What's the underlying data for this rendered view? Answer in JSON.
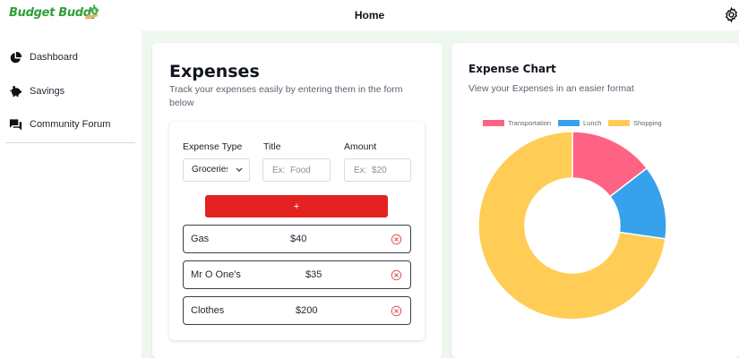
{
  "header": {
    "brand": "Budget Buddy",
    "title": "Home"
  },
  "sidebar": {
    "items": [
      {
        "label": "Dashboard",
        "icon": "pie-chart-icon"
      },
      {
        "label": "Savings",
        "icon": "piggy-bank-icon"
      },
      {
        "label": "Community Forum",
        "icon": "forum-icon"
      }
    ]
  },
  "expenses": {
    "title": "Expenses",
    "subtitle": "Track your expenses easily by entering them in the form below",
    "form": {
      "type_label": "Expense Type",
      "type_value": "Groceries",
      "title_label": "Title",
      "title_placeholder": "Ex:  Food",
      "amount_label": "Amount",
      "amount_placeholder": "Ex:  $20",
      "add_label": "+"
    },
    "items": [
      {
        "name": "Gas",
        "amount": "$40"
      },
      {
        "name": "Mr O One's",
        "amount": "$35"
      },
      {
        "name": "Clothes",
        "amount": "$200"
      }
    ]
  },
  "chart": {
    "title": "Expense Chart",
    "subtitle": "View your Expenses in an easier format"
  },
  "chart_data": {
    "type": "pie",
    "donut": true,
    "categories": [
      "Transportation",
      "Lunch",
      "Shopping"
    ],
    "values": [
      40,
      35,
      200
    ],
    "colors": [
      "#ff6384",
      "#36a2eb",
      "#ffcd56"
    ],
    "legend": "top"
  },
  "colors": {
    "brand": "#2f9e37",
    "accent_button": "#e52222",
    "main_bg": "#eef8ee",
    "delete_icon": "#e05555"
  }
}
